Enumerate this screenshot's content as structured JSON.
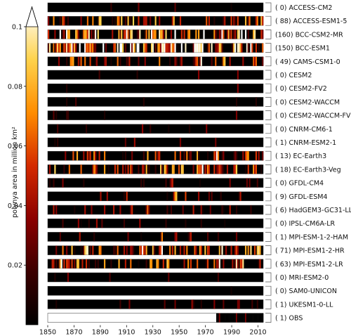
{
  "chart_data": {
    "type": "heatmap",
    "title": "",
    "x": {
      "start": 1850,
      "end": 2014,
      "tick_labels": [
        "1850",
        "1870",
        "1890",
        "1910",
        "1930",
        "1950",
        "1970",
        "1990",
        "2010"
      ]
    },
    "colorbar": {
      "label": "polynya area in million km²",
      "range": [
        0,
        0.1
      ],
      "extend": "max",
      "tick_labels": [
        "0.02",
        "0.04",
        "0.06",
        "0.08",
        "0.1"
      ],
      "tick_values": [
        0.02,
        0.04,
        0.06,
        0.08,
        0.1
      ],
      "colormap": [
        "#000000",
        "#3b0000",
        "#8b0000",
        "#d42a00",
        "#ff8c00",
        "#ffd24a",
        "#ffffff"
      ]
    },
    "models": [
      {
        "count": "( 0)",
        "name": "ACCESS-CM2",
        "activity": 0.04,
        "seed": 11
      },
      {
        "count": "( 88)",
        "name": "ACCESS-ESM1-5",
        "activity": 0.55,
        "seed": 23
      },
      {
        "count": "(160)",
        "name": "BCC-CSM2-MR",
        "activity": 0.85,
        "seed": 37
      },
      {
        "count": "(150)",
        "name": "BCC-ESM1",
        "activity": 0.8,
        "seed": 41
      },
      {
        "count": "( 49)",
        "name": "CAMS-CSM1-0",
        "activity": 0.35,
        "seed": 53
      },
      {
        "count": "( 0)",
        "name": "CESM2",
        "activity": 0.06,
        "seed": 61
      },
      {
        "count": "( 0)",
        "name": "CESM2-FV2",
        "activity": 0.05,
        "seed": 67
      },
      {
        "count": "( 0)",
        "name": "CESM2-WACCM",
        "activity": 0.06,
        "seed": 71
      },
      {
        "count": "( 0)",
        "name": "CESM2-WACCM-FV2",
        "activity": 0.05,
        "seed": 79
      },
      {
        "count": "( 0)",
        "name": "CNRM-CM6-1",
        "activity": 0.05,
        "seed": 83
      },
      {
        "count": "( 1)",
        "name": "CNRM-ESM2-1",
        "activity": 0.1,
        "seed": 89
      },
      {
        "count": "( 13)",
        "name": "EC-Earth3",
        "activity": 0.45,
        "seed": 97
      },
      {
        "count": "( 18)",
        "name": "EC-Earth3-Veg",
        "activity": 0.55,
        "seed": 101
      },
      {
        "count": "( 0)",
        "name": "GFDL-CM4",
        "activity": 0.08,
        "seed": 103
      },
      {
        "count": "( 9)",
        "name": "GFDL-ESM4",
        "activity": 0.25,
        "seed": 107
      },
      {
        "count": "( 6)",
        "name": "HadGEM3-GC31-LL",
        "activity": 0.2,
        "seed": 109
      },
      {
        "count": "( 0)",
        "name": "IPSL-CM6A-LR",
        "activity": 0.08,
        "seed": 113
      },
      {
        "count": "( 1)",
        "name": "MPI-ESM-1-2-HAM",
        "activity": 0.12,
        "seed": 127
      },
      {
        "count": "( 71)",
        "name": "MPI-ESM1-2-HR",
        "activity": 0.5,
        "seed": 131
      },
      {
        "count": "( 63)",
        "name": "MPI-ESM1-2-LR",
        "activity": 0.5,
        "seed": 137
      },
      {
        "count": "( 0)",
        "name": "MRI-ESM2-0",
        "activity": 0.03,
        "seed": 139
      },
      {
        "count": "( 0)",
        "name": "SAM0-UNICON",
        "activity": 0.02,
        "seed": 149
      },
      {
        "count": "( 1)",
        "name": "UKESM1-0-LL",
        "activity": 0.08,
        "seed": 151
      },
      {
        "count": "( 1)",
        "name": "OBS",
        "activity": 0.0,
        "seed": 157
      }
    ]
  }
}
